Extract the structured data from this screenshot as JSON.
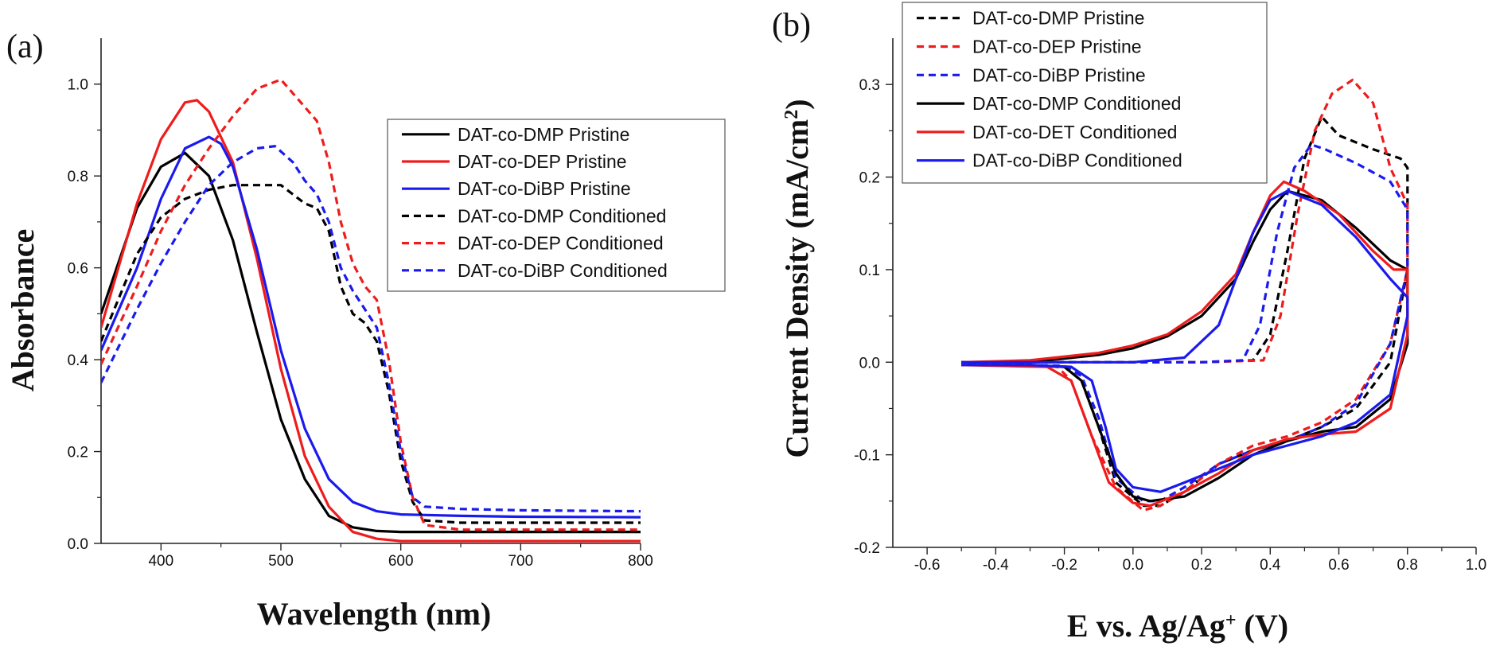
{
  "chart_data": [
    {
      "type": "line",
      "panel_label": "(a)",
      "xlabel": "Wavelength (nm)",
      "ylabel": "Absorbance",
      "xlim": [
        350,
        800
      ],
      "ylim": [
        0,
        1.1
      ],
      "xticks": [
        400,
        500,
        600,
        700,
        800
      ],
      "yticks": [
        0.0,
        0.2,
        0.4,
        0.6,
        0.8,
        1.0
      ],
      "tick_labels_x": [
        "400",
        "500",
        "600",
        "700",
        "800"
      ],
      "tick_labels_y": [
        "0.0",
        "0.2",
        "0.4",
        "0.6",
        "0.8",
        "1.0"
      ],
      "grid": false,
      "legend_position": "top-right",
      "series": [
        {
          "name": "DAT-co-DMP Pristine",
          "color": "#000000",
          "dash": "solid",
          "x": [
            350,
            380,
            400,
            420,
            440,
            460,
            480,
            500,
            520,
            540,
            560,
            580,
            600,
            650,
            700,
            750,
            800
          ],
          "y": [
            0.5,
            0.73,
            0.82,
            0.85,
            0.8,
            0.66,
            0.46,
            0.27,
            0.14,
            0.06,
            0.035,
            0.027,
            0.025,
            0.025,
            0.025,
            0.025,
            0.025
          ]
        },
        {
          "name": "DAT-co-DEP Pristine",
          "color": "#ee1c1c",
          "dash": "solid",
          "x": [
            350,
            380,
            400,
            420,
            430,
            440,
            460,
            480,
            500,
            520,
            540,
            560,
            580,
            600,
            650,
            700,
            800
          ],
          "y": [
            0.47,
            0.74,
            0.88,
            0.96,
            0.965,
            0.94,
            0.83,
            0.62,
            0.38,
            0.19,
            0.08,
            0.025,
            0.01,
            0.005,
            0.005,
            0.005,
            0.005
          ]
        },
        {
          "name": "DAT-co-DiBP Pristine",
          "color": "#1a1aee",
          "dash": "solid",
          "x": [
            350,
            380,
            400,
            420,
            440,
            450,
            460,
            480,
            500,
            520,
            540,
            560,
            580,
            600,
            650,
            700,
            800
          ],
          "y": [
            0.42,
            0.6,
            0.75,
            0.86,
            0.885,
            0.87,
            0.82,
            0.64,
            0.42,
            0.25,
            0.14,
            0.09,
            0.07,
            0.063,
            0.06,
            0.058,
            0.057
          ]
        },
        {
          "name": "DAT-co-DMP Conditioned",
          "color": "#000000",
          "dash": "dashed",
          "x": [
            350,
            380,
            400,
            420,
            440,
            460,
            480,
            500,
            510,
            520,
            530,
            540,
            550,
            560,
            570,
            580,
            590,
            600,
            610,
            620,
            650,
            700,
            800
          ],
          "y": [
            0.44,
            0.63,
            0.71,
            0.75,
            0.77,
            0.78,
            0.78,
            0.78,
            0.76,
            0.74,
            0.73,
            0.68,
            0.56,
            0.5,
            0.48,
            0.44,
            0.33,
            0.18,
            0.09,
            0.05,
            0.045,
            0.045,
            0.045
          ]
        },
        {
          "name": "DAT-co-DEP Conditioned",
          "color": "#ee1c1c",
          "dash": "dashed",
          "x": [
            350,
            380,
            400,
            420,
            440,
            460,
            480,
            500,
            510,
            520,
            530,
            540,
            550,
            560,
            570,
            580,
            590,
            600,
            610,
            620,
            650,
            700,
            800
          ],
          "y": [
            0.39,
            0.56,
            0.68,
            0.78,
            0.86,
            0.93,
            0.99,
            1.01,
            0.98,
            0.95,
            0.92,
            0.83,
            0.7,
            0.61,
            0.56,
            0.53,
            0.4,
            0.22,
            0.1,
            0.04,
            0.03,
            0.03,
            0.03
          ]
        },
        {
          "name": "DAT-co-DiBP Conditioned",
          "color": "#1a1aee",
          "dash": "dashed",
          "x": [
            350,
            380,
            400,
            420,
            440,
            460,
            480,
            495,
            510,
            520,
            530,
            540,
            550,
            560,
            570,
            580,
            590,
            600,
            610,
            620,
            650,
            700,
            800
          ],
          "y": [
            0.35,
            0.51,
            0.61,
            0.7,
            0.78,
            0.83,
            0.86,
            0.865,
            0.83,
            0.79,
            0.76,
            0.7,
            0.6,
            0.55,
            0.51,
            0.47,
            0.35,
            0.2,
            0.1,
            0.08,
            0.075,
            0.072,
            0.07
          ]
        }
      ]
    },
    {
      "type": "line",
      "panel_label": "(b)",
      "xlabel": "E vs. Ag/Ag",
      "xlabel_superscript": "+",
      "xlabel_suffix": " (V)",
      "ylabel": "Current Density (mA/cm",
      "ylabel_superscript": "2",
      "ylabel_suffix": ")",
      "xlim": [
        -0.7,
        1.0
      ],
      "ylim": [
        -0.2,
        0.35
      ],
      "xticks": [
        -0.6,
        -0.4,
        -0.2,
        0.0,
        0.2,
        0.4,
        0.6,
        0.8,
        1.0
      ],
      "yticks": [
        -0.2,
        -0.1,
        0.0,
        0.1,
        0.2,
        0.3
      ],
      "tick_labels_x": [
        "-0.6",
        "-0.4",
        "-0.2",
        "0.0",
        "0.2",
        "0.4",
        "0.6",
        "0.8",
        "1.0"
      ],
      "tick_labels_y": [
        "-0.2",
        "-0.1",
        "0.0",
        "0.1",
        "0.2",
        "0.3"
      ],
      "grid": false,
      "legend_position": "top-left",
      "series": [
        {
          "name": "DAT-co-DMP Pristine",
          "color": "#000000",
          "dash": "dashed",
          "x": [
            -0.5,
            -0.2,
            0.0,
            0.2,
            0.35,
            0.4,
            0.45,
            0.5,
            0.55,
            0.6,
            0.7,
            0.78,
            0.8,
            0.8,
            0.75,
            0.65,
            0.55,
            0.45,
            0.35,
            0.25,
            0.15,
            0.08,
            0.03,
            -0.05,
            -0.1,
            -0.15,
            -0.2,
            -0.3,
            -0.5
          ],
          "y": [
            0.0,
            0.0,
            0.0,
            0.0,
            0.002,
            0.03,
            0.12,
            0.22,
            0.265,
            0.245,
            0.23,
            0.22,
            0.21,
            0.1,
            0.0,
            -0.05,
            -0.07,
            -0.085,
            -0.095,
            -0.11,
            -0.14,
            -0.155,
            -0.155,
            -0.13,
            -0.07,
            -0.02,
            -0.005,
            -0.003,
            -0.003
          ]
        },
        {
          "name": "DAT-co-DEP Pristine",
          "color": "#ee1c1c",
          "dash": "dashed",
          "x": [
            -0.5,
            -0.2,
            0.0,
            0.2,
            0.38,
            0.43,
            0.48,
            0.53,
            0.58,
            0.64,
            0.7,
            0.75,
            0.8,
            0.8,
            0.75,
            0.65,
            0.55,
            0.45,
            0.35,
            0.25,
            0.15,
            0.08,
            0.03,
            -0.05,
            -0.12,
            -0.18,
            -0.22,
            -0.3,
            -0.5
          ],
          "y": [
            0.0,
            0.0,
            0.0,
            0.0,
            0.002,
            0.05,
            0.16,
            0.25,
            0.29,
            0.305,
            0.28,
            0.21,
            0.17,
            0.1,
            0.02,
            -0.04,
            -0.065,
            -0.08,
            -0.09,
            -0.11,
            -0.14,
            -0.155,
            -0.16,
            -0.135,
            -0.08,
            -0.02,
            -0.005,
            -0.003,
            -0.003
          ]
        },
        {
          "name": "DAT-co-DiBP Pristine",
          "color": "#1a1aee",
          "dash": "dashed",
          "x": [
            -0.5,
            -0.2,
            0.0,
            0.2,
            0.32,
            0.37,
            0.42,
            0.47,
            0.52,
            0.56,
            0.65,
            0.75,
            0.8,
            0.8,
            0.75,
            0.65,
            0.55,
            0.45,
            0.35,
            0.25,
            0.15,
            0.08,
            0.03,
            -0.05,
            -0.1,
            -0.15,
            -0.2,
            -0.3,
            -0.5
          ],
          "y": [
            0.0,
            0.0,
            0.0,
            0.0,
            0.002,
            0.04,
            0.14,
            0.21,
            0.235,
            0.23,
            0.215,
            0.195,
            0.165,
            0.1,
            0.02,
            -0.045,
            -0.07,
            -0.085,
            -0.095,
            -0.11,
            -0.135,
            -0.15,
            -0.15,
            -0.125,
            -0.06,
            -0.015,
            -0.004,
            -0.003,
            -0.003
          ]
        },
        {
          "name": "DAT-co-DMP Conditioned",
          "color": "#000000",
          "dash": "solid",
          "x": [
            -0.5,
            -0.3,
            -0.1,
            0.0,
            0.1,
            0.2,
            0.3,
            0.35,
            0.4,
            0.45,
            0.55,
            0.65,
            0.75,
            0.8,
            0.8,
            0.75,
            0.65,
            0.55,
            0.45,
            0.35,
            0.25,
            0.15,
            0.05,
            0.0,
            -0.05,
            -0.1,
            -0.15,
            -0.2,
            -0.3,
            -0.5
          ],
          "y": [
            0.0,
            0.0,
            0.008,
            0.015,
            0.028,
            0.05,
            0.09,
            0.13,
            0.165,
            0.185,
            0.175,
            0.145,
            0.11,
            0.1,
            0.02,
            -0.04,
            -0.07,
            -0.075,
            -0.085,
            -0.1,
            -0.125,
            -0.145,
            -0.15,
            -0.145,
            -0.12,
            -0.07,
            -0.02,
            -0.005,
            -0.003,
            -0.003
          ]
        },
        {
          "name": "DAT-co-DET Conditioned",
          "color": "#ee1c1c",
          "dash": "solid",
          "x": [
            -0.5,
            -0.3,
            -0.1,
            0.0,
            0.1,
            0.2,
            0.3,
            0.35,
            0.4,
            0.44,
            0.5,
            0.6,
            0.7,
            0.76,
            0.8,
            0.8,
            0.75,
            0.65,
            0.55,
            0.45,
            0.35,
            0.25,
            0.15,
            0.05,
            0.0,
            -0.07,
            -0.13,
            -0.18,
            -0.25,
            -0.5
          ],
          "y": [
            0.0,
            0.002,
            0.01,
            0.018,
            0.03,
            0.055,
            0.095,
            0.14,
            0.18,
            0.195,
            0.185,
            0.16,
            0.12,
            0.1,
            0.1,
            0.03,
            -0.05,
            -0.075,
            -0.078,
            -0.083,
            -0.095,
            -0.12,
            -0.14,
            -0.155,
            -0.152,
            -0.13,
            -0.07,
            -0.02,
            -0.005,
            -0.003
          ]
        },
        {
          "name": "DAT-co-DiBP Conditioned",
          "color": "#1a1aee",
          "dash": "solid",
          "x": [
            -0.5,
            -0.2,
            0.0,
            0.15,
            0.25,
            0.3,
            0.35,
            0.4,
            0.45,
            0.55,
            0.65,
            0.75,
            0.8,
            0.8,
            0.75,
            0.65,
            0.55,
            0.45,
            0.35,
            0.25,
            0.15,
            0.08,
            0.0,
            -0.05,
            -0.08,
            -0.12,
            -0.18,
            -0.3,
            -0.5
          ],
          "y": [
            0.0,
            0.0,
            0.0,
            0.005,
            0.04,
            0.09,
            0.14,
            0.175,
            0.185,
            0.17,
            0.135,
            0.09,
            0.07,
            0.05,
            -0.035,
            -0.065,
            -0.08,
            -0.09,
            -0.1,
            -0.115,
            -0.13,
            -0.14,
            -0.135,
            -0.115,
            -0.07,
            -0.02,
            -0.005,
            -0.003,
            -0.003
          ]
        }
      ]
    }
  ]
}
